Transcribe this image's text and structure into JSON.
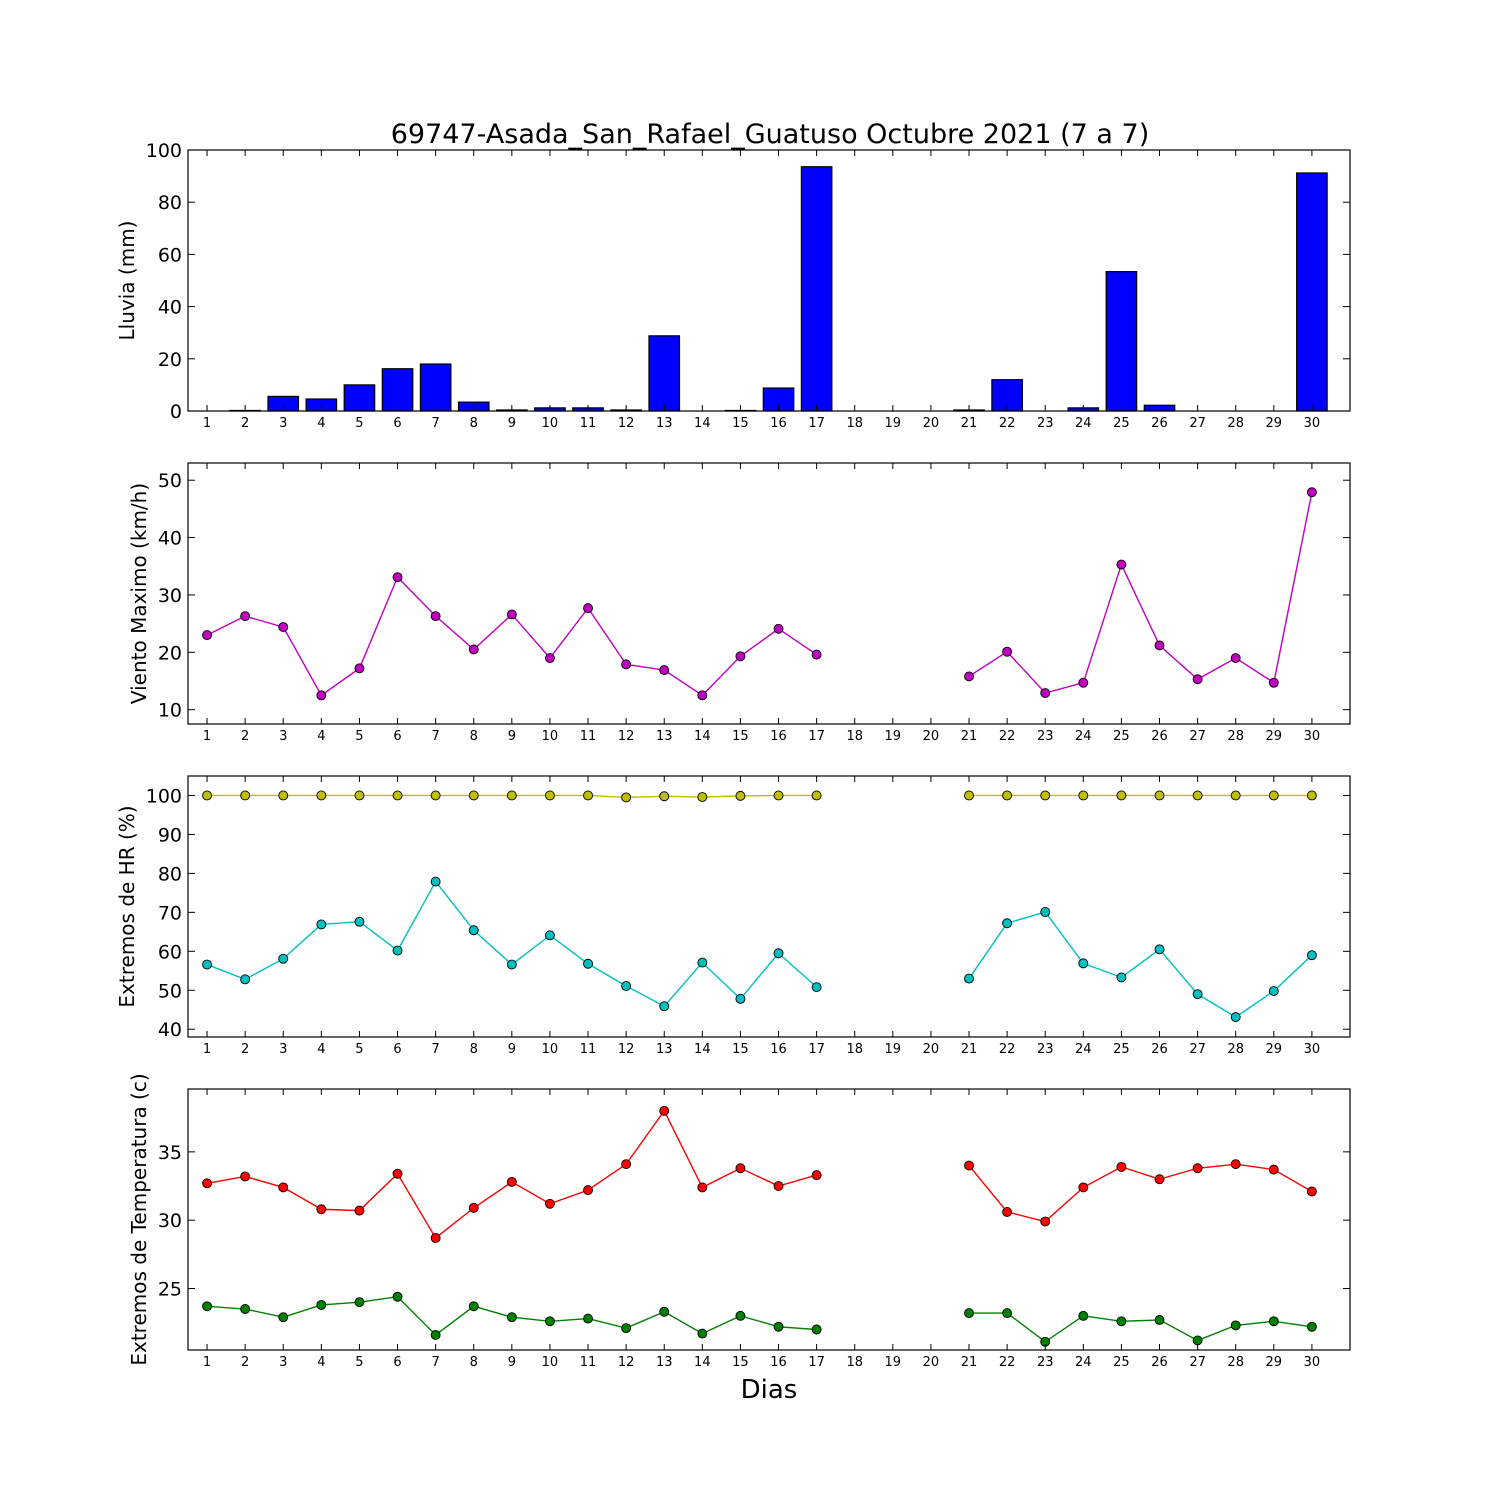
{
  "title": "69747-Asada_San_Rafael_Guatuso Octubre 2021  (7 a 7)",
  "xlabel": "Dias",
  "chart_data": [
    {
      "type": "bar",
      "ylabel": "Lluvia (mm)",
      "categories": [
        "1",
        "2",
        "3",
        "4",
        "5",
        "6",
        "7",
        "8",
        "9",
        "10",
        "11",
        "12",
        "13",
        "14",
        "15",
        "16",
        "17",
        "18",
        "19",
        "20",
        "21",
        "22",
        "23",
        "24",
        "25",
        "26",
        "27",
        "28",
        "29",
        "30"
      ],
      "ylim": [
        0,
        100
      ],
      "yticks": [
        0,
        20,
        40,
        60,
        80,
        100
      ],
      "series": [
        {
          "color": "#0000ff",
          "values": [
            0,
            0.2,
            5.6,
            4.6,
            10,
            16.2,
            18,
            3.4,
            0.4,
            1.2,
            1.2,
            0.4,
            28.8,
            0,
            0.2,
            8.8,
            93.6,
            null,
            null,
            null,
            0.4,
            12,
            0,
            1.2,
            53.4,
            2.2,
            0,
            0,
            0,
            91.2
          ]
        }
      ]
    },
    {
      "type": "line",
      "ylabel": "Viento Maximo (km/h)",
      "categories": [
        "1",
        "2",
        "3",
        "4",
        "5",
        "6",
        "7",
        "8",
        "9",
        "10",
        "11",
        "12",
        "13",
        "14",
        "15",
        "16",
        "17",
        "18",
        "19",
        "20",
        "21",
        "22",
        "23",
        "24",
        "25",
        "26",
        "27",
        "28",
        "29",
        "30"
      ],
      "ylim": [
        7.5,
        53
      ],
      "yticks": [
        10,
        20,
        30,
        40,
        50
      ],
      "series": [
        {
          "color": "#bf00bf",
          "values": [
            23,
            26.3,
            24.4,
            12.5,
            17.2,
            33.1,
            26.3,
            20.5,
            26.6,
            19,
            27.7,
            17.9,
            16.9,
            12.5,
            19.3,
            24.1,
            19.6,
            null,
            null,
            null,
            15.8,
            20.1,
            12.9,
            14.7,
            35.3,
            21.2,
            15.3,
            19,
            14.7,
            47.9
          ]
        }
      ]
    },
    {
      "type": "line",
      "ylabel": "Extremos de HR (%)",
      "categories": [
        "1",
        "2",
        "3",
        "4",
        "5",
        "6",
        "7",
        "8",
        "9",
        "10",
        "11",
        "12",
        "13",
        "14",
        "15",
        "16",
        "17",
        "18",
        "19",
        "20",
        "21",
        "22",
        "23",
        "24",
        "25",
        "26",
        "27",
        "28",
        "29",
        "30"
      ],
      "ylim": [
        38,
        105
      ],
      "yticks": [
        40,
        50,
        60,
        70,
        80,
        90,
        100
      ],
      "series": [
        {
          "color": "#bfbf00",
          "values": [
            100,
            100,
            100,
            100,
            100,
            100,
            100,
            100,
            100,
            100,
            100,
            99.5,
            99.8,
            99.6,
            99.9,
            100,
            100,
            null,
            null,
            null,
            100,
            100,
            100,
            100,
            100,
            100,
            100,
            100,
            100,
            100
          ]
        },
        {
          "color": "#00bfbf",
          "values": [
            56.6,
            52.8,
            58.1,
            66.9,
            67.6,
            60.2,
            77.9,
            65.4,
            56.6,
            64.1,
            56.8,
            51.1,
            45.9,
            57.1,
            47.8,
            59.5,
            50.8,
            null,
            null,
            null,
            53,
            67.2,
            70.1,
            56.9,
            53.3,
            60.5,
            49,
            43.1,
            49.8,
            59
          ]
        }
      ]
    },
    {
      "type": "line",
      "ylabel": "Extremos de Temperatura (c)",
      "categories": [
        "1",
        "2",
        "3",
        "4",
        "5",
        "6",
        "7",
        "8",
        "9",
        "10",
        "11",
        "12",
        "13",
        "14",
        "15",
        "16",
        "17",
        "18",
        "19",
        "20",
        "21",
        "22",
        "23",
        "24",
        "25",
        "26",
        "27",
        "28",
        "29",
        "30"
      ],
      "ylim": [
        20.5,
        39.6
      ],
      "yticks": [
        25,
        30,
        35
      ],
      "series": [
        {
          "color": "#ff0000",
          "values": [
            32.7,
            33.2,
            32.4,
            30.8,
            30.7,
            33.4,
            28.7,
            30.9,
            32.8,
            31.2,
            32.2,
            34.1,
            38,
            32.4,
            33.8,
            32.5,
            33.3,
            null,
            null,
            null,
            34,
            30.6,
            29.9,
            32.4,
            33.9,
            33,
            33.8,
            34.1,
            33.7,
            32.1
          ]
        },
        {
          "color": "#008000",
          "values": [
            23.7,
            23.5,
            22.9,
            23.8,
            24,
            24.4,
            21.6,
            23.7,
            22.9,
            22.6,
            22.8,
            22.1,
            23.3,
            21.7,
            23,
            22.2,
            22,
            null,
            null,
            null,
            23.2,
            23.2,
            21.1,
            23,
            22.6,
            22.7,
            21.2,
            22.3,
            22.6,
            22.2
          ]
        }
      ]
    }
  ]
}
